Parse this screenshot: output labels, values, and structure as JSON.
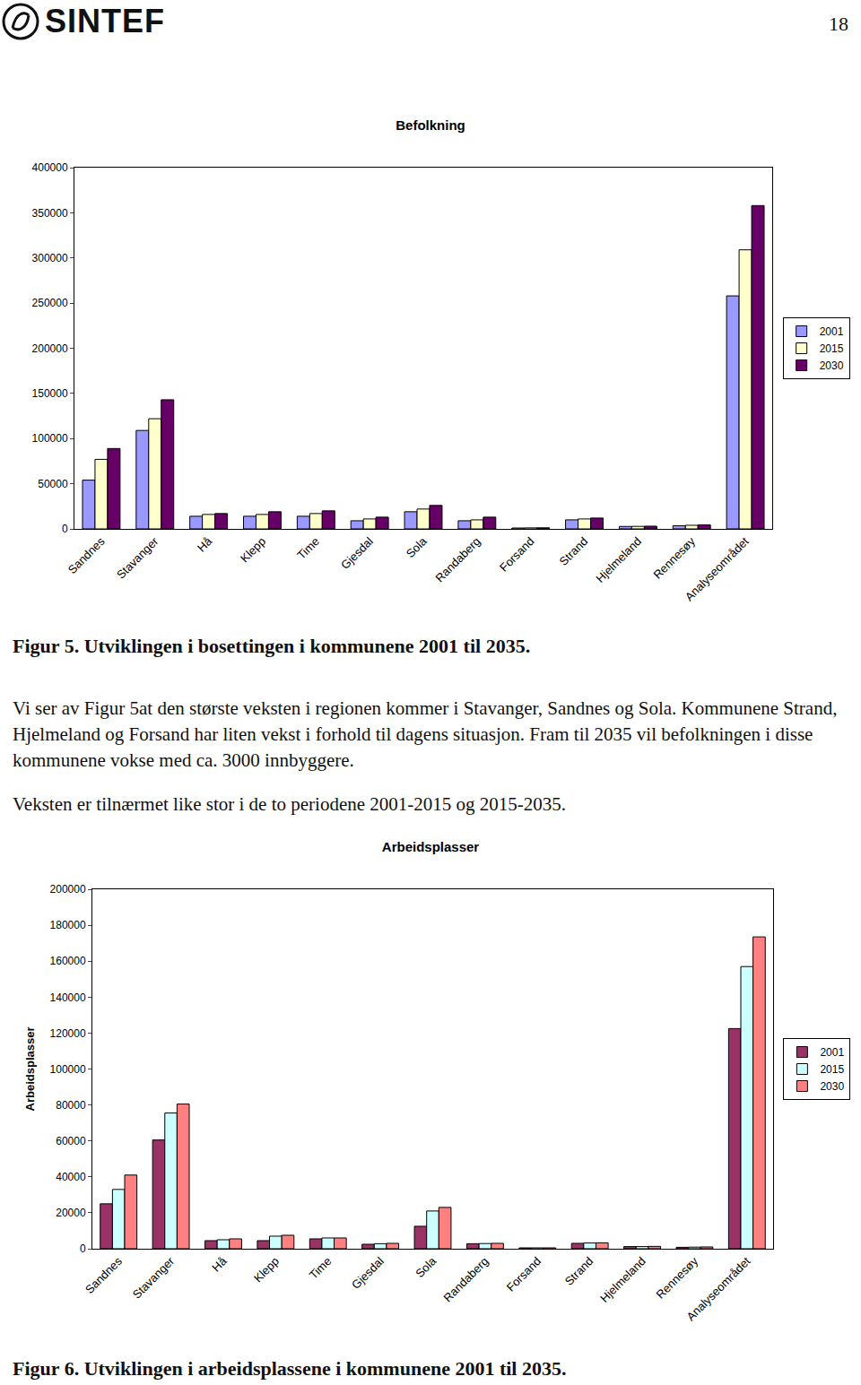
{
  "header": {
    "logo": "SINTEF",
    "page": "18"
  },
  "chart_data": [
    {
      "type": "bar",
      "title": "Befolkning",
      "categories": [
        "Sandnes",
        "Stavanger",
        "Hå",
        "Klepp",
        "Time",
        "Gjesdal",
        "Sola",
        "Randaberg",
        "Forsand",
        "Strand",
        "Hjelmeland",
        "Rennesøy",
        "Analyseområdet"
      ],
      "series": [
        {
          "name": "2001",
          "color": "#9999ff",
          "values": [
            54000,
            109000,
            14000,
            14000,
            14000,
            9000,
            19000,
            9000,
            1000,
            10000,
            2700,
            3500,
            258000
          ]
        },
        {
          "name": "2015",
          "color": "#ffffcc",
          "values": [
            77000,
            122000,
            16000,
            16000,
            17000,
            11000,
            22000,
            10000,
            1100,
            11000,
            2800,
            4000,
            309000
          ]
        },
        {
          "name": "2030",
          "color": "#660066",
          "values": [
            89000,
            143000,
            17000,
            19000,
            20000,
            13000,
            26000,
            13000,
            1200,
            12000,
            3000,
            4500,
            358000
          ]
        }
      ],
      "ylim": [
        0,
        400000
      ],
      "yticks": [
        0,
        50000,
        100000,
        150000,
        200000,
        250000,
        300000,
        350000,
        400000
      ],
      "grid": false,
      "legend": "right"
    },
    {
      "type": "bar",
      "title": "Arbeidsplasser",
      "y_label": "Arbeidsplasser",
      "categories": [
        "Sandnes",
        "Stavanger",
        "Hå",
        "Klepp",
        "Time",
        "Gjesdal",
        "Sola",
        "Randaberg",
        "Forsand",
        "Strand",
        "Hjelmeland",
        "Rennesøy",
        "Analyseområdet"
      ],
      "series": [
        {
          "name": "2001",
          "color": "#993366",
          "values": [
            25000,
            60500,
            4500,
            4500,
            5500,
            2500,
            12500,
            2800,
            500,
            3000,
            1200,
            800,
            122500
          ]
        },
        {
          "name": "2015",
          "color": "#ccffff",
          "values": [
            33000,
            75500,
            5000,
            7000,
            6000,
            2800,
            21000,
            2900,
            500,
            3200,
            1200,
            900,
            157000
          ]
        },
        {
          "name": "2030",
          "color": "#ff8080",
          "values": [
            41000,
            80500,
            5500,
            7500,
            6000,
            3000,
            23000,
            3000,
            500,
            3300,
            1300,
            1000,
            173500
          ]
        }
      ],
      "ylim": [
        0,
        200000
      ],
      "yticks": [
        0,
        20000,
        40000,
        60000,
        80000,
        100000,
        120000,
        140000,
        160000,
        180000,
        200000
      ],
      "grid": false,
      "legend": "right"
    }
  ],
  "text": {
    "captions": [
      "Figur 5. Utviklingen i bosettingen i kommunene 2001 til 2035.",
      "Figur 6. Utviklingen i arbeidsplassene i kommunene 2001 til 2035."
    ],
    "paragraphs": [
      "Vi ser av Figur 5at den største veksten i regionen kommer i Stavanger, Sandnes og Sola. Kommunene Strand, Hjelmeland og Forsand har liten vekst i forhold til dagens situasjon. Fram til 2035 vil befolkningen i disse kommunene vokse med ca. 3000 innbyggere.",
      "Veksten er tilnærmet like stor i de to periodene 2001-2015 og 2015-2035."
    ]
  }
}
